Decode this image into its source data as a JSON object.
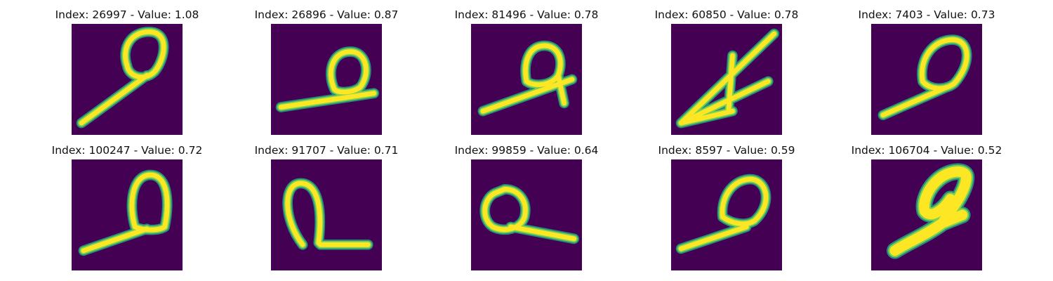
{
  "colors": {
    "background": "#440154",
    "stroke_outer": "#21a685",
    "stroke_mid": "#7ad151",
    "stroke_inner": "#fde725"
  },
  "panels": [
    {
      "title": "Index: 26997 - Value: 1.08"
    },
    {
      "title": "Index: 26896 - Value: 0.87"
    },
    {
      "title": "Index: 81496 - Value: 0.78"
    },
    {
      "title": "Index: 60850 - Value: 0.78"
    },
    {
      "title": "Index: 7403 - Value: 0.73"
    },
    {
      "title": "Index: 100247 - Value: 0.72"
    },
    {
      "title": "Index: 91707 - Value: 0.71"
    },
    {
      "title": "Index: 99859 - Value: 0.64"
    },
    {
      "title": "Index: 8597 - Value: 0.59"
    },
    {
      "title": "Index: 106704 - Value: 0.52"
    }
  ]
}
